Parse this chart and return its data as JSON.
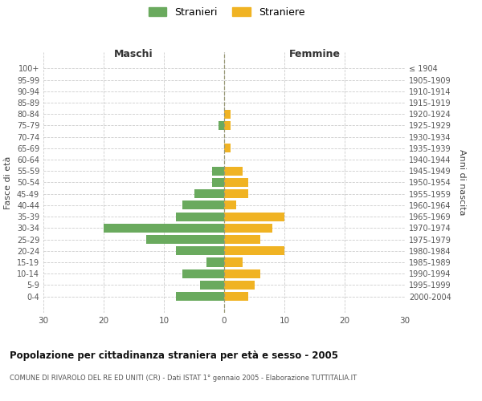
{
  "age_groups": [
    "100+",
    "95-99",
    "90-94",
    "85-89",
    "80-84",
    "75-79",
    "70-74",
    "65-69",
    "60-64",
    "55-59",
    "50-54",
    "45-49",
    "40-44",
    "35-39",
    "30-34",
    "25-29",
    "20-24",
    "15-19",
    "10-14",
    "5-9",
    "0-4"
  ],
  "birth_years": [
    "≤ 1904",
    "1905-1909",
    "1910-1914",
    "1915-1919",
    "1920-1924",
    "1925-1929",
    "1930-1934",
    "1935-1939",
    "1940-1944",
    "1945-1949",
    "1950-1954",
    "1955-1959",
    "1960-1964",
    "1965-1969",
    "1970-1974",
    "1975-1979",
    "1980-1984",
    "1985-1989",
    "1990-1994",
    "1995-1999",
    "2000-2004"
  ],
  "males": [
    0,
    0,
    0,
    0,
    0,
    1,
    0,
    0,
    0,
    2,
    2,
    5,
    7,
    8,
    20,
    13,
    8,
    3,
    7,
    4,
    8
  ],
  "females": [
    0,
    0,
    0,
    0,
    1,
    1,
    0,
    1,
    0,
    3,
    4,
    4,
    2,
    10,
    8,
    6,
    10,
    3,
    6,
    5,
    4
  ],
  "color_male": "#6aaa5e",
  "color_female": "#f0b323",
  "title": "Popolazione per cittadinanza straniera per età e sesso - 2005",
  "subtitle": "COMUNE DI RIVAROLO DEL RE ED UNITI (CR) - Dati ISTAT 1° gennaio 2005 - Elaborazione TUTTITALIA.IT",
  "legend_male": "Stranieri",
  "legend_female": "Straniere",
  "xlabel_left": "Maschi",
  "xlabel_right": "Femmine",
  "ylabel_left": "Fasce di età",
  "ylabel_right": "Anni di nascita",
  "xlim": 30,
  "background_color": "#ffffff",
  "grid_color": "#cccccc"
}
